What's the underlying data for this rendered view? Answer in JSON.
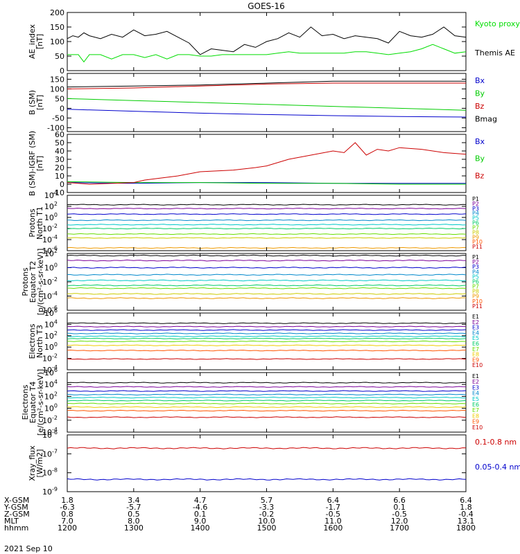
{
  "title": "GOES-16",
  "date": "2021 Sep 10",
  "x_axis": {
    "row_labels": [
      "X-GSM",
      "Y-GSM",
      "Z-GSM",
      "MLT",
      "hhmm"
    ],
    "ticks": [
      {
        "time": "1200",
        "values": [
          "1.8",
          "-6.3",
          "0.8",
          "7.0",
          "1200"
        ]
      },
      {
        "time": "1300",
        "values": [
          "3.4",
          "-5.7",
          "0.5",
          "8.0",
          "1300"
        ]
      },
      {
        "time": "1400",
        "values": [
          "4.7",
          "-4.6",
          "0.1",
          "9.0",
          "1400"
        ]
      },
      {
        "time": "1500",
        "values": [
          "5.7",
          "-3.3",
          "-0.2",
          "10.0",
          "1500"
        ]
      },
      {
        "time": "1600",
        "values": [
          "6.4",
          "-1.7",
          "-0.5",
          "11.0",
          "1600"
        ]
      },
      {
        "time": "1700",
        "values": [
          "6.6",
          "0.1",
          "-0.5",
          "12.0",
          "1700"
        ]
      },
      {
        "time": "1800",
        "values": [
          "6.4",
          "1.8",
          "-0.4",
          "13.1",
          "1800"
        ]
      }
    ]
  },
  "chart_data": [
    {
      "type": "line",
      "ylabel": [
        "AE_index",
        "[nT]"
      ],
      "scale": "linear",
      "ylim": [
        0,
        200
      ],
      "yticks": [
        "0",
        "50",
        "100",
        "150",
        "200"
      ],
      "series": [
        {
          "name": "Kyoto proxy AE",
          "color": "#00dd00",
          "x": [
            1200,
            1210,
            1215,
            1220,
            1230,
            1240,
            1250,
            1300,
            1310,
            1320,
            1330,
            1340,
            1350,
            1400,
            1410,
            1420,
            1430,
            1440,
            1450,
            1500,
            1510,
            1520,
            1530,
            1540,
            1550,
            1600,
            1610,
            1620,
            1630,
            1640,
            1650,
            1700,
            1710,
            1720,
            1730,
            1740,
            1750,
            1800
          ],
          "values": [
            55,
            55,
            30,
            55,
            55,
            40,
            55,
            55,
            45,
            55,
            40,
            55,
            55,
            50,
            50,
            55,
            55,
            55,
            55,
            55,
            60,
            65,
            60,
            60,
            60,
            60,
            60,
            65,
            65,
            60,
            55,
            60,
            65,
            75,
            90,
            75,
            60,
            65
          ]
        },
        {
          "name": "Themis AE",
          "color": "#000000",
          "x": [
            1200,
            1205,
            1210,
            1215,
            1220,
            1230,
            1240,
            1250,
            1300,
            1310,
            1320,
            1330,
            1340,
            1350,
            1400,
            1405,
            1410,
            1420,
            1430,
            1440,
            1450,
            1500,
            1510,
            1520,
            1530,
            1540,
            1550,
            1600,
            1610,
            1620,
            1630,
            1640,
            1650,
            1700,
            1710,
            1720,
            1730,
            1740,
            1750,
            1800
          ],
          "values": [
            110,
            120,
            115,
            130,
            120,
            110,
            125,
            115,
            140,
            120,
            125,
            135,
            115,
            95,
            55,
            65,
            75,
            70,
            65,
            90,
            80,
            100,
            110,
            130,
            115,
            150,
            120,
            125,
            110,
            120,
            115,
            110,
            95,
            135,
            120,
            115,
            125,
            150,
            120,
            115
          ]
        }
      ]
    },
    {
      "type": "line",
      "ylabel": [
        "B (SM)",
        "[nT]"
      ],
      "scale": "linear",
      "ylim": [
        -120,
        180
      ],
      "yticks": [
        "-100",
        "-50",
        "0",
        "50",
        "100",
        "150"
      ],
      "series": [
        {
          "name": "Bx",
          "color": "#0000cc",
          "x": [
            1200,
            1300,
            1400,
            1500,
            1600,
            1700,
            1800
          ],
          "values": [
            -5,
            -15,
            -25,
            -32,
            -38,
            -42,
            -45
          ]
        },
        {
          "name": "By",
          "color": "#00cc00",
          "x": [
            1200,
            1300,
            1400,
            1500,
            1600,
            1700,
            1800
          ],
          "values": [
            50,
            40,
            30,
            20,
            10,
            0,
            -10
          ]
        },
        {
          "name": "Bz",
          "color": "#cc0000",
          "x": [
            1200,
            1300,
            1400,
            1500,
            1600,
            1700,
            1800
          ],
          "values": [
            100,
            105,
            115,
            125,
            130,
            130,
            130
          ]
        },
        {
          "name": "Bmag",
          "color": "#000000",
          "x": [
            1200,
            1300,
            1400,
            1500,
            1600,
            1700,
            1800
          ],
          "values": [
            110,
            115,
            120,
            130,
            140,
            140,
            140
          ]
        }
      ]
    },
    {
      "type": "line",
      "ylabel": [
        "B (SM)-IGRF (SM)",
        "[nT]"
      ],
      "scale": "linear",
      "ylim": [
        -10,
        60
      ],
      "yticks": [
        "-10",
        "0",
        "10",
        "20",
        "30",
        "40",
        "50",
        "60"
      ],
      "series": [
        {
          "name": "Bx",
          "color": "#0000cc",
          "x": [
            1200,
            1300,
            1400,
            1500,
            1600,
            1700,
            1800
          ],
          "values": [
            2,
            1,
            2,
            2,
            1,
            1,
            1
          ]
        },
        {
          "name": "By",
          "color": "#00cc00",
          "x": [
            1200,
            1300,
            1400,
            1500,
            1600,
            1700,
            1800
          ],
          "values": [
            3,
            2,
            2,
            1,
            1,
            0,
            0
          ]
        },
        {
          "name": "Bz",
          "color": "#cc0000",
          "x": [
            1200,
            1220,
            1300,
            1310,
            1340,
            1400,
            1430,
            1450,
            1500,
            1520,
            1540,
            1600,
            1610,
            1620,
            1630,
            1640,
            1650,
            1700,
            1720,
            1740,
            1800
          ],
          "values": [
            2,
            0,
            2,
            5,
            10,
            15,
            17,
            20,
            22,
            30,
            35,
            40,
            38,
            50,
            35,
            42,
            40,
            44,
            42,
            38,
            36
          ]
        }
      ]
    },
    {
      "type": "line",
      "ylabel": [
        "Protons",
        "North T1"
      ],
      "scale": "log",
      "ylim": [
        -6,
        4
      ],
      "yticks": [
        "10^-6",
        "10^-4",
        "10^-2",
        "10^0",
        "10^2",
        "10^4"
      ],
      "legend": [
        "P1",
        "P2",
        "P3",
        "P4",
        "P5",
        "P6",
        "P7",
        "P8",
        "P9",
        "P10",
        "P11"
      ],
      "series": [
        {
          "name": "P1",
          "color": "#000000",
          "level": 2.3
        },
        {
          "name": "P2",
          "color": "#7b0099",
          "level": 1.6
        },
        {
          "name": "P3",
          "color": "#0000cc",
          "level": 0.6
        },
        {
          "name": "P4",
          "color": "#0088cc",
          "level": -0.5
        },
        {
          "name": "P5",
          "color": "#00c8c8",
          "level": -1.3
        },
        {
          "name": "P6",
          "color": "#00cc66",
          "level": -2.0
        },
        {
          "name": "P7",
          "color": "#66dd00",
          "level": -3.0
        },
        {
          "name": "P8",
          "color": "#cccc00",
          "level": -3.7
        },
        {
          "name": "P9",
          "color": "#ee9900",
          "level": -5.5
        },
        {
          "name": "P10",
          "color": "#ff5500",
          "level": -7
        },
        {
          "name": "P11",
          "color": "#cc0000",
          "level": -7
        }
      ]
    },
    {
      "type": "line",
      "ylabel": [
        "Protons",
        "Equator T2",
        "[p/(cm²-s-sr-keV)]"
      ],
      "scale": "log",
      "ylim": [
        -6,
        2
      ],
      "yticks": [
        "10^-6",
        "10^-4",
        "10^-2",
        "10^0",
        "10^2"
      ],
      "legend": [
        "P1",
        "P2",
        "P3",
        "P4",
        "P5",
        "P6",
        "P7",
        "P8",
        "P9",
        "P10",
        "P11"
      ],
      "series": [
        {
          "name": "P1",
          "color": "#000000",
          "level": 1.7
        },
        {
          "name": "P2",
          "color": "#7b0099",
          "level": 1.0
        },
        {
          "name": "P3",
          "color": "#0000cc",
          "level": 0.0
        },
        {
          "name": "P4",
          "color": "#0088cc",
          "level": -1.0
        },
        {
          "name": "P5",
          "color": "#00c8c8",
          "level": -1.8
        },
        {
          "name": "P6",
          "color": "#00cc66",
          "level": -2.5
        },
        {
          "name": "P7",
          "color": "#66dd00",
          "level": -2.9
        },
        {
          "name": "P8",
          "color": "#cccc00",
          "level": -3.7
        },
        {
          "name": "P9",
          "color": "#ee9900",
          "level": -4.3
        },
        {
          "name": "P10",
          "color": "#ff5500",
          "level": -7
        },
        {
          "name": "P11",
          "color": "#cc0000",
          "level": -7
        }
      ]
    },
    {
      "type": "line",
      "ylabel": [
        "Electrons",
        "North T3"
      ],
      "scale": "log",
      "ylim": [
        -4,
        6
      ],
      "yticks": [
        "10^-4",
        "10^-2",
        "10^0",
        "10^2",
        "10^4",
        "10^6"
      ],
      "legend": [
        "E1",
        "E2",
        "E3",
        "E4",
        "E5",
        "E6",
        "E7",
        "E8",
        "E9",
        "E10"
      ],
      "series": [
        {
          "name": "E1",
          "color": "#000000",
          "level": 4.2
        },
        {
          "name": "E2",
          "color": "#7b0099",
          "level": 3.6
        },
        {
          "name": "E3",
          "color": "#0000cc",
          "level": 3.0
        },
        {
          "name": "E4",
          "color": "#0088cc",
          "level": 2.4
        },
        {
          "name": "E5",
          "color": "#00c8c8",
          "level": 1.9
        },
        {
          "name": "E6",
          "color": "#00cc66",
          "level": 1.5
        },
        {
          "name": "E7",
          "color": "#66dd00",
          "level": 1.0
        },
        {
          "name": "E8",
          "color": "#eecc00",
          "level": 0.3
        },
        {
          "name": "E9",
          "color": "#ff5500",
          "level": -0.6
        },
        {
          "name": "E10",
          "color": "#cc0000",
          "level": -2.1
        }
      ]
    },
    {
      "type": "line",
      "ylabel": [
        "Electrons",
        "Equator T4",
        "[e/(cm²-s-sr-keV)]"
      ],
      "scale": "log",
      "ylim": [
        -4,
        6
      ],
      "yticks": [
        "10^-4",
        "10^-2",
        "10^0",
        "10^2",
        "10^4",
        "10^6"
      ],
      "legend": [
        "E1",
        "E2",
        "E3",
        "E4",
        "E5",
        "E6",
        "E7",
        "E8",
        "E9",
        "E10"
      ],
      "series": [
        {
          "name": "E1",
          "color": "#000000",
          "level": 4.3
        },
        {
          "name": "E2",
          "color": "#7b0099",
          "level": 3.6
        },
        {
          "name": "E3",
          "color": "#0000cc",
          "level": 2.9
        },
        {
          "name": "E4",
          "color": "#0088cc",
          "level": 2.3
        },
        {
          "name": "E5",
          "color": "#00c8c8",
          "level": 1.8
        },
        {
          "name": "E6",
          "color": "#00cc66",
          "level": 1.3
        },
        {
          "name": "E7",
          "color": "#66dd00",
          "level": 0.8
        },
        {
          "name": "E8",
          "color": "#eecc00",
          "level": 0.2
        },
        {
          "name": "E9",
          "color": "#ff5500",
          "level": -0.4
        },
        {
          "name": "E10",
          "color": "#cc0000",
          "level": -1.5
        }
      ]
    },
    {
      "type": "line",
      "ylabel": [
        "Xray_flux",
        "[W/m2]"
      ],
      "scale": "log",
      "ylim": [
        -9,
        -6
      ],
      "yticks": [
        "10^-9",
        "10^-8",
        "10^-7",
        "10^-6"
      ],
      "series": [
        {
          "name": "0.1-0.8 nm",
          "color": "#cc0000",
          "level": -6.7
        },
        {
          "name": "0.05-0.4 nm",
          "color": "#0000cc",
          "level": -8.35
        }
      ]
    }
  ]
}
